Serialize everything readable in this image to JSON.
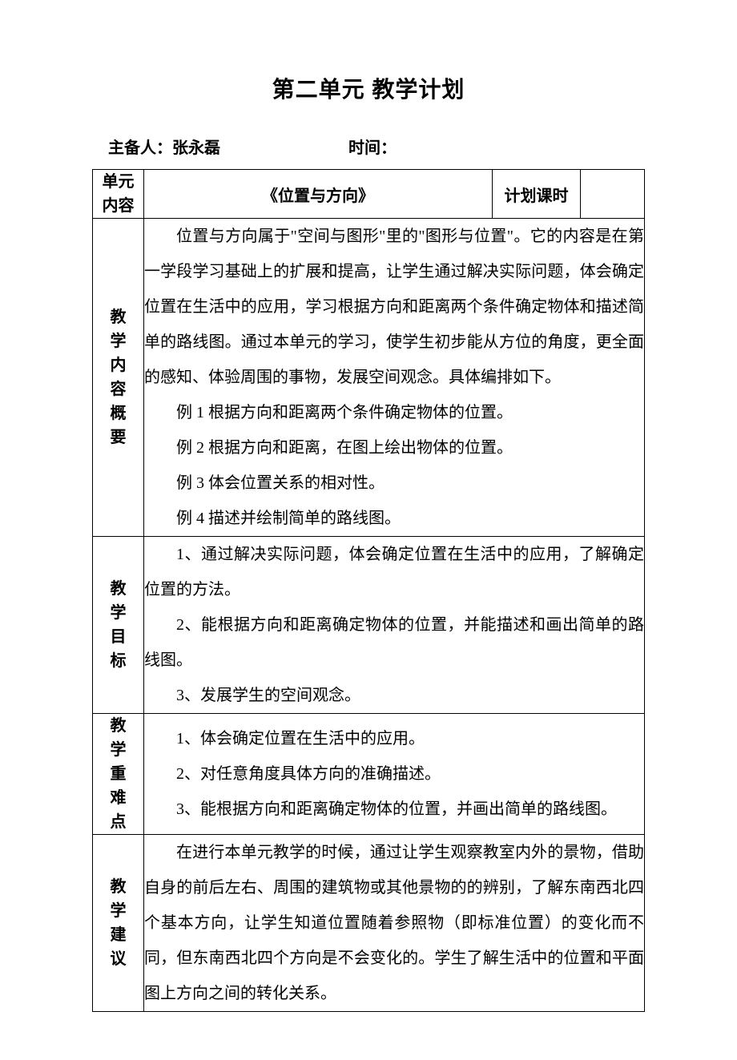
{
  "title": "第二单元 教学计划",
  "info": {
    "preparer_label": "主备人：",
    "preparer_name": "张永磊",
    "time_label": "时间：",
    "time_value": ""
  },
  "row1": {
    "unit_content_label_l1": "单元",
    "unit_content_label_l2": "内容",
    "unit_title": "《位置与方向》",
    "plan_hours_label": "计划课时",
    "plan_hours_value": ""
  },
  "sections": {
    "overview": {
      "label_chars": [
        "教",
        "学",
        "内",
        "容",
        "概",
        "要"
      ],
      "p1": "位置与方向属于\"空间与图形\"里的\"图形与位置\"。它的内容是在第一学段学习基础上的扩展和提高，让学生通过解决实际问题，体会确定位置在生活中的应用，学习根据方向和距离两个条件确定物体和描述简单的路线图。通过本单元的学习，使学生初步能从方位的角度，更全面的感知、体验周围的事物，发展空间观念。具体编排如下。",
      "ex1": "例 1 根据方向和距离两个条件确定物体的位置。",
      "ex2": "例 2 根据方向和距离，在图上绘出物体的位置。",
      "ex3": "例 3 体会位置关系的相对性。",
      "ex4": "例 4 描述并绘制简单的路线图。"
    },
    "goals": {
      "label_chars": [
        "教",
        "学",
        "目",
        "标"
      ],
      "g1": "1、通过解决实际问题，体会确定位置在生活中的应用，了解确定位置的方法。",
      "g2": "2、能根据方向和距离确定物体的位置，并能描述和画出简单的路线图。",
      "g3": "3、发展学生的空间观念。"
    },
    "keypoints": {
      "label_chars": [
        "教",
        "学",
        "重",
        "难",
        "点"
      ],
      "k1": "1、体会确定位置在生活中的应用。",
      "k2": "2、对任意角度具体方向的准确描述。",
      "k3": "3、能根据方向和距离确定物体的位置，并画出简单的路线图。"
    },
    "suggestions": {
      "label_chars": [
        "教",
        "学",
        "建",
        "议"
      ],
      "s1": "在进行本单元教学的时候，通过让学生观察教室内外的景物，借助自身的前后左右、周围的建筑物或其他景物的的辨别，了解东南西北四个基本方向，让学生知道位置随着参照物（即标准位置）的变化而不同，但东南西北四个方向是不会变化的。学生了解生活中的位置和平面图上方向之间的转化关系。"
    }
  }
}
